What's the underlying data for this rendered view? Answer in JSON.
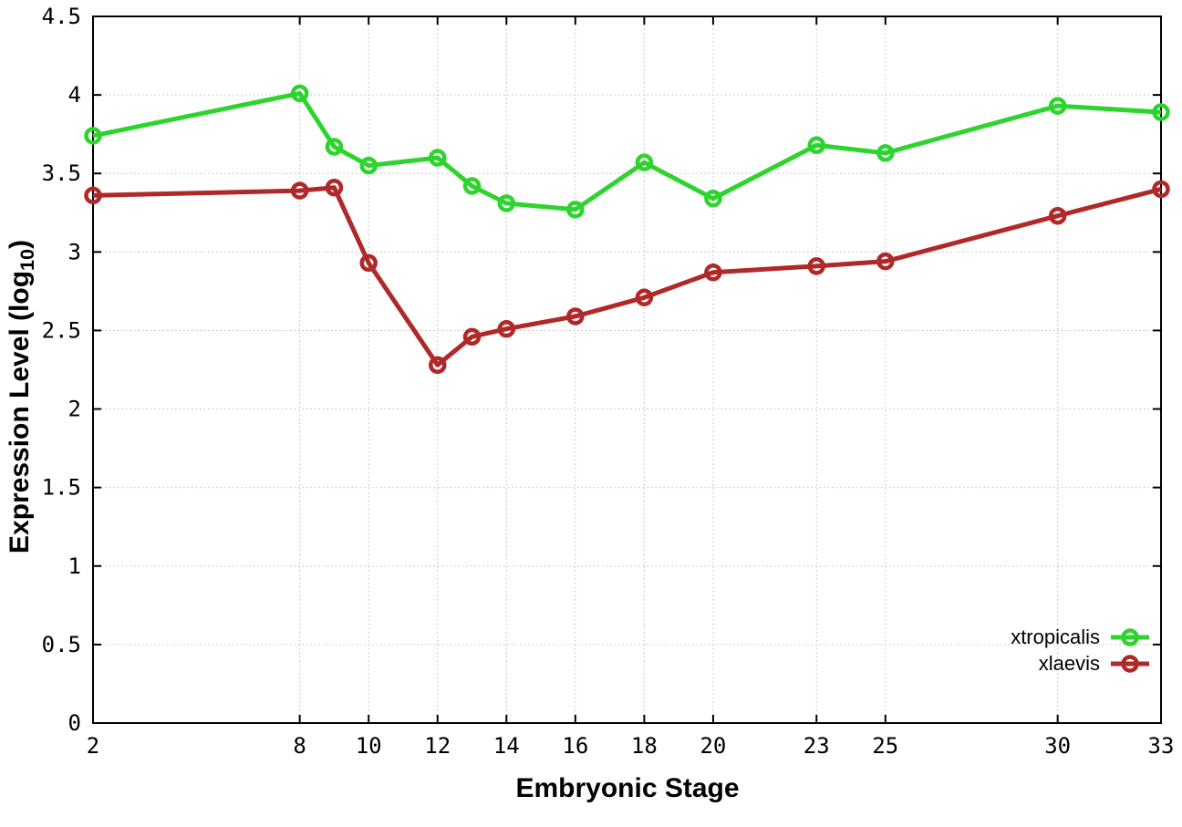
{
  "x_axis_title": "Embryonic Stage",
  "y_axis_title": {
    "prefix": "Expression Level (log",
    "subscript": "10",
    "suffix": ")"
  },
  "chart_data": {
    "type": "line",
    "title": "",
    "xlabel": "Embryonic Stage",
    "ylabel": "Expression Level (log10)",
    "xlim": [
      2,
      33
    ],
    "ylim": [
      0,
      4.5
    ],
    "x_ticks": [
      2,
      8,
      10,
      12,
      14,
      16,
      18,
      20,
      23,
      25,
      30,
      33
    ],
    "y_ticks": [
      0,
      0.5,
      1,
      1.5,
      2,
      2.5,
      3,
      3.5,
      4,
      4.5
    ],
    "grid": true,
    "legend_position": "bottom-right",
    "marker": "open-circle",
    "x": [
      2,
      8,
      9,
      10,
      12,
      13,
      14,
      16,
      18,
      20,
      23,
      25,
      30,
      33
    ],
    "series": [
      {
        "name": "xtropicalis",
        "color": "#2ed42e",
        "values": [
          3.74,
          4.01,
          3.67,
          3.55,
          3.6,
          3.42,
          3.31,
          3.27,
          3.57,
          3.34,
          3.68,
          3.63,
          3.93,
          3.89
        ]
      },
      {
        "name": "xlaevis",
        "color": "#b02828",
        "values": [
          3.36,
          3.39,
          3.41,
          2.93,
          2.28,
          2.46,
          2.51,
          2.59,
          2.71,
          2.87,
          2.91,
          2.94,
          3.23,
          3.4
        ]
      }
    ],
    "colors": {
      "grid": "#bcbcbc",
      "border": "#000000",
      "text": "#000000"
    }
  }
}
